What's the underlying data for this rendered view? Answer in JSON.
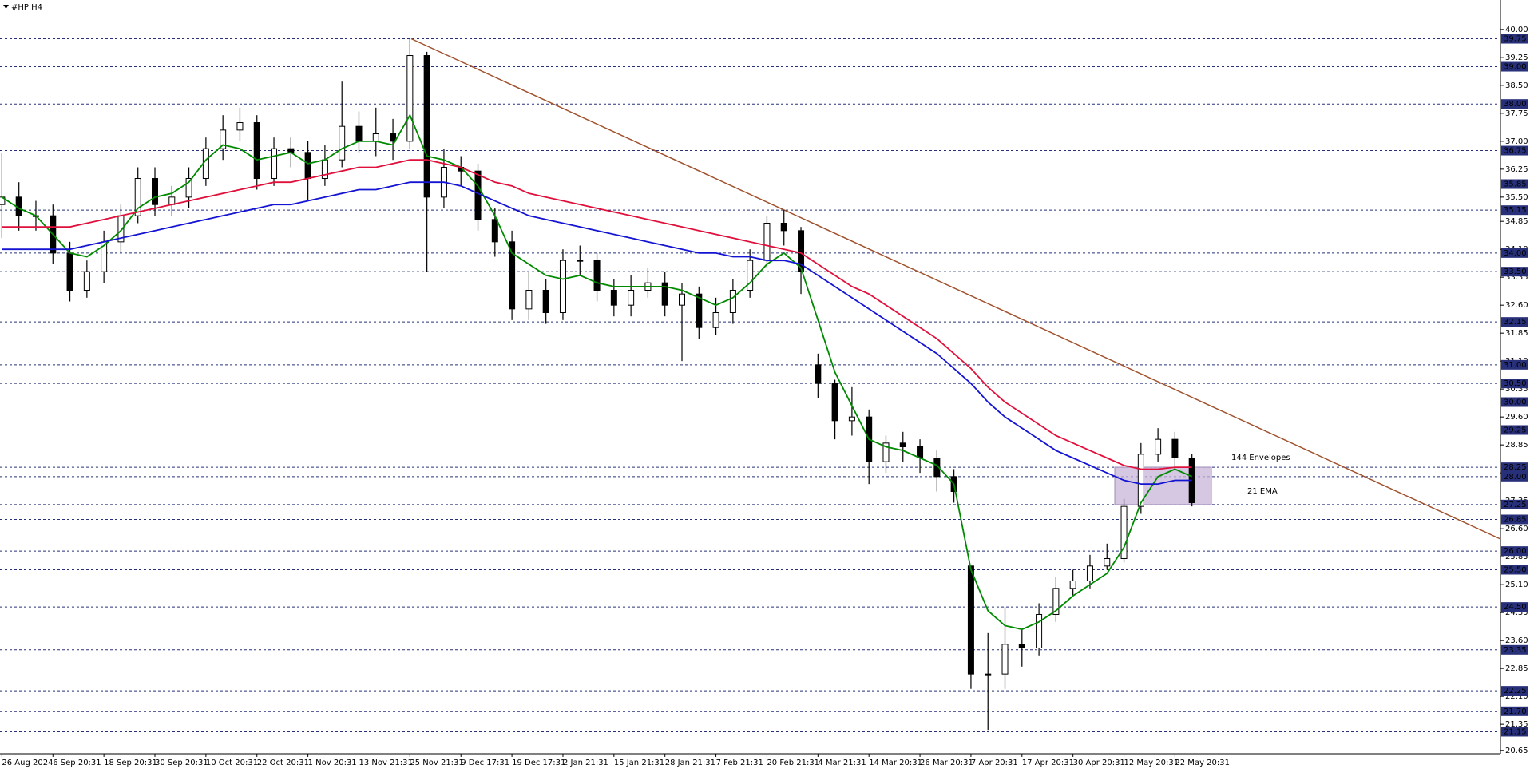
{
  "chart_data": {
    "type": "candlestick",
    "title": "#HP,H4",
    "categories": [
      "26 Aug 2024",
      null,
      null,
      "6 Sep 20:31",
      null,
      null,
      "18 Sep 20:31",
      null,
      null,
      "30 Sep 20:31",
      null,
      null,
      "10 Oct 20:31",
      null,
      null,
      "22 Oct 20:31",
      null,
      null,
      "1 Nov 20:31",
      null,
      null,
      "13 Nov 21:31",
      null,
      null,
      "25 Nov 21:31",
      null,
      null,
      "9 Dec 17:31",
      null,
      null,
      "19 Dec 17:31",
      null,
      null,
      "2 Jan 21:31",
      null,
      null,
      "15 Jan 21:31",
      null,
      null,
      "28 Jan 21:31",
      null,
      null,
      "7 Feb 21:31",
      null,
      null,
      "20 Feb 21:31",
      null,
      null,
      "4 Mar 21:31",
      null,
      null,
      "14 Mar 20:31",
      null,
      null,
      "26 Mar 20:31",
      null,
      null,
      "7 Apr 20:31",
      null,
      null,
      "17 Apr 20:31",
      null,
      null,
      "30 Apr 20:31",
      null,
      null,
      "12 May 20:31",
      null,
      null,
      "22 May 20:31",
      null
    ],
    "ohlc": {
      "open": [
        35.3,
        35.5,
        35.0,
        35.0,
        34.0,
        33.0,
        33.5,
        34.3,
        35.0,
        36.0,
        35.3,
        35.5,
        36.0,
        36.8,
        37.3,
        37.5,
        36.0,
        36.8,
        36.7,
        36.0,
        36.5,
        37.4,
        37.0,
        37.2,
        37.0,
        39.3,
        35.5,
        36.3,
        36.2,
        34.9,
        34.3,
        32.5,
        33.0,
        32.4,
        33.8,
        33.8,
        33.0,
        32.6,
        33.0,
        33.2,
        32.6,
        32.9,
        32.0,
        32.4,
        33.0,
        33.8,
        34.8,
        34.6,
        31.0,
        30.5,
        29.5,
        29.6,
        28.4,
        28.9,
        28.8,
        28.5,
        28.0,
        25.6,
        22.7,
        22.7,
        23.5,
        23.4,
        24.3,
        25.0,
        25.2,
        25.6,
        25.8,
        27.2,
        28.6,
        29.0,
        28.5
      ],
      "high": [
        36.7,
        35.9,
        35.4,
        35.3,
        34.3,
        33.8,
        34.6,
        35.3,
        36.3,
        36.3,
        35.8,
        36.3,
        37.1,
        37.7,
        37.9,
        37.7,
        37.1,
        37.1,
        37.0,
        36.9,
        38.6,
        37.8,
        37.9,
        37.6,
        39.75,
        39.4,
        36.8,
        36.6,
        36.4,
        35.2,
        34.6,
        33.5,
        33.3,
        34.1,
        34.2,
        34.0,
        33.3,
        33.4,
        33.6,
        33.5,
        33.2,
        33.1,
        32.8,
        33.3,
        34.1,
        35.0,
        35.15,
        34.7,
        31.3,
        30.6,
        30.4,
        29.8,
        29.1,
        29.2,
        29.0,
        28.7,
        28.2,
        25.6,
        23.8,
        24.5,
        23.9,
        24.6,
        25.3,
        25.5,
        25.9,
        26.2,
        27.4,
        28.9,
        29.3,
        29.2,
        28.6
      ],
      "low": [
        34.4,
        34.6,
        34.6,
        33.7,
        32.7,
        32.8,
        33.2,
        34.0,
        34.8,
        35.0,
        35.0,
        35.2,
        35.8,
        36.5,
        37.0,
        35.7,
        35.8,
        36.3,
        35.4,
        35.8,
        36.3,
        36.7,
        36.6,
        36.5,
        36.8,
        33.5,
        35.2,
        35.8,
        34.6,
        33.9,
        32.2,
        32.2,
        32.1,
        32.2,
        33.4,
        32.7,
        32.3,
        32.3,
        32.8,
        32.3,
        31.1,
        31.7,
        31.8,
        32.1,
        32.8,
        33.6,
        34.2,
        32.9,
        30.1,
        29.0,
        29.1,
        27.8,
        28.1,
        28.4,
        28.1,
        27.6,
        27.3,
        22.3,
        21.2,
        22.3,
        22.9,
        23.2,
        24.1,
        24.8,
        25.0,
        25.5,
        25.7,
        27.0,
        28.4,
        28.2,
        27.2
      ],
      "close": [
        35.5,
        35.0,
        35.0,
        34.0,
        33.0,
        33.5,
        34.3,
        35.0,
        36.0,
        35.3,
        35.5,
        36.0,
        36.8,
        37.3,
        37.5,
        36.0,
        36.8,
        36.7,
        36.0,
        36.5,
        37.4,
        37.0,
        37.2,
        37.0,
        39.3,
        35.5,
        36.3,
        36.2,
        34.9,
        34.3,
        32.5,
        33.0,
        32.4,
        33.8,
        33.8,
        33.0,
        32.6,
        33.0,
        33.2,
        32.6,
        32.9,
        32.0,
        32.4,
        33.0,
        33.8,
        34.8,
        34.6,
        33.5,
        30.5,
        29.5,
        29.6,
        28.4,
        28.9,
        28.8,
        28.5,
        28.0,
        27.6,
        22.7,
        22.7,
        23.5,
        23.4,
        24.3,
        25.0,
        25.2,
        25.6,
        25.8,
        27.2,
        28.6,
        29.0,
        28.5,
        27.3
      ],
      "up_color": "#ffffff",
      "down_color": "#000000"
    },
    "lines": [
      {
        "name": "21 EMA",
        "color": "#008a00",
        "values": [
          35.5,
          35.2,
          35.0,
          34.5,
          34.0,
          33.9,
          34.2,
          34.6,
          35.2,
          35.5,
          35.6,
          35.9,
          36.5,
          36.9,
          36.8,
          36.5,
          36.6,
          36.7,
          36.4,
          36.5,
          36.8,
          37.0,
          37.0,
          36.9,
          37.7,
          36.6,
          36.5,
          36.3,
          35.8,
          35.0,
          34.0,
          33.7,
          33.4,
          33.3,
          33.4,
          33.2,
          33.1,
          33.1,
          33.1,
          33.1,
          33.0,
          32.8,
          32.6,
          32.8,
          33.2,
          33.7,
          34.0,
          33.6,
          32.2,
          30.8,
          29.9,
          29.0,
          28.8,
          28.7,
          28.5,
          28.3,
          27.8,
          25.5,
          24.4,
          24.0,
          23.9,
          24.1,
          24.4,
          24.8,
          25.1,
          25.4,
          26.1,
          27.3,
          28.0,
          28.2,
          28.0
        ]
      },
      {
        "name": "144 Envelopes",
        "color": "#e0103c",
        "values": [
          34.7,
          34.7,
          34.7,
          34.7,
          34.7,
          34.8,
          34.9,
          35.0,
          35.1,
          35.2,
          35.3,
          35.4,
          35.5,
          35.6,
          35.7,
          35.8,
          35.9,
          35.9,
          36.0,
          36.1,
          36.2,
          36.3,
          36.3,
          36.4,
          36.5,
          36.5,
          36.4,
          36.3,
          36.1,
          35.9,
          35.8,
          35.6,
          35.5,
          35.4,
          35.3,
          35.2,
          35.1,
          35.0,
          34.9,
          34.8,
          34.7,
          34.6,
          34.5,
          34.4,
          34.3,
          34.2,
          34.1,
          34.0,
          33.7,
          33.4,
          33.1,
          32.9,
          32.6,
          32.3,
          32.0,
          31.7,
          31.3,
          30.9,
          30.4,
          30.0,
          29.7,
          29.4,
          29.1,
          28.9,
          28.7,
          28.5,
          28.3,
          28.2,
          28.2,
          28.25,
          28.25
        ]
      },
      {
        "color": "#1414d2",
        "values": [
          34.1,
          34.1,
          34.1,
          34.1,
          34.1,
          34.2,
          34.3,
          34.4,
          34.5,
          34.6,
          34.7,
          34.8,
          34.9,
          35.0,
          35.1,
          35.2,
          35.3,
          35.3,
          35.4,
          35.5,
          35.6,
          35.7,
          35.7,
          35.8,
          35.9,
          35.9,
          35.9,
          35.8,
          35.6,
          35.4,
          35.2,
          35.0,
          34.9,
          34.8,
          34.7,
          34.6,
          34.5,
          34.4,
          34.3,
          34.2,
          34.1,
          34.0,
          34.0,
          33.9,
          33.9,
          33.8,
          33.8,
          33.7,
          33.4,
          33.1,
          32.8,
          32.5,
          32.2,
          31.9,
          31.6,
          31.3,
          30.9,
          30.5,
          30.0,
          29.6,
          29.3,
          29.0,
          28.7,
          28.5,
          28.3,
          28.1,
          27.9,
          27.8,
          27.8,
          27.9,
          27.9
        ]
      }
    ],
    "ylim": [
      20.56,
      40.49
    ],
    "yticks": [
      {
        "value": 40.0,
        "label": "40.00"
      },
      {
        "value": 39.25,
        "label": "39.25"
      },
      {
        "value": 38.5,
        "label": "38.50"
      },
      {
        "value": 37.75,
        "label": "37.75"
      },
      {
        "value": 37.0,
        "label": "37.00"
      },
      {
        "value": 36.25,
        "label": "36.25"
      },
      {
        "value": 35.5,
        "label": "35.50"
      },
      {
        "value": 34.85,
        "label": "34.85"
      },
      {
        "value": 34.1,
        "label": "34.10"
      },
      {
        "value": 33.35,
        "label": "33.35"
      },
      {
        "value": 32.6,
        "label": "32.60"
      },
      {
        "value": 31.85,
        "label": "31.85"
      },
      {
        "value": 31.1,
        "label": "31.10"
      },
      {
        "value": 30.35,
        "label": "30.35"
      },
      {
        "value": 29.6,
        "label": "29.60"
      },
      {
        "value": 28.85,
        "label": "28.85"
      },
      {
        "value": 28.1,
        "label": "28.10"
      },
      {
        "value": 27.35,
        "label": "27.35"
      },
      {
        "value": 26.6,
        "label": "26.60"
      },
      {
        "value": 25.85,
        "label": "25.85"
      },
      {
        "value": 25.1,
        "label": "25.10"
      },
      {
        "value": 24.35,
        "label": "24.35"
      },
      {
        "value": 23.6,
        "label": "23.60"
      },
      {
        "value": 22.85,
        "label": "22.85"
      },
      {
        "value": 22.1,
        "label": "22.10"
      },
      {
        "value": 21.35,
        "label": "21.35"
      },
      {
        "value": 20.65,
        "label": "20.65"
      }
    ],
    "levels": [
      {
        "value": 39.75,
        "label": "39.75"
      },
      {
        "value": 39.0,
        "label": "39.00"
      },
      {
        "value": 38.0,
        "label": "38.00"
      },
      {
        "value": 36.75,
        "label": "36.75"
      },
      {
        "value": 35.85,
        "label": "35.85"
      },
      {
        "value": 35.15,
        "label": "35.15"
      },
      {
        "value": 34.0,
        "label": "34.00"
      },
      {
        "value": 33.5,
        "label": "33.50"
      },
      {
        "value": 32.15,
        "label": "32.15"
      },
      {
        "value": 31.0,
        "label": "31.00"
      },
      {
        "value": 30.5,
        "label": "30.50"
      },
      {
        "value": 30.0,
        "label": "30.00"
      },
      {
        "value": 29.25,
        "label": "29.25"
      },
      {
        "value": 28.25,
        "label": "28.25"
      },
      {
        "value": 28.0,
        "label": "28.00"
      },
      {
        "value": 27.25,
        "label": "27.25"
      },
      {
        "value": 26.85,
        "label": "26.85"
      },
      {
        "value": 26.0,
        "label": "26.00"
      },
      {
        "value": 25.5,
        "label": "25.50"
      },
      {
        "value": 24.5,
        "label": "24.50"
      },
      {
        "value": 23.35,
        "label": "23.35"
      },
      {
        "value": 22.25,
        "label": "22.25"
      },
      {
        "value": 21.7,
        "label": "21.70"
      },
      {
        "value": 21.15,
        "label": "21.15"
      }
    ],
    "level_color": "#28307a",
    "grid": false
  }
}
